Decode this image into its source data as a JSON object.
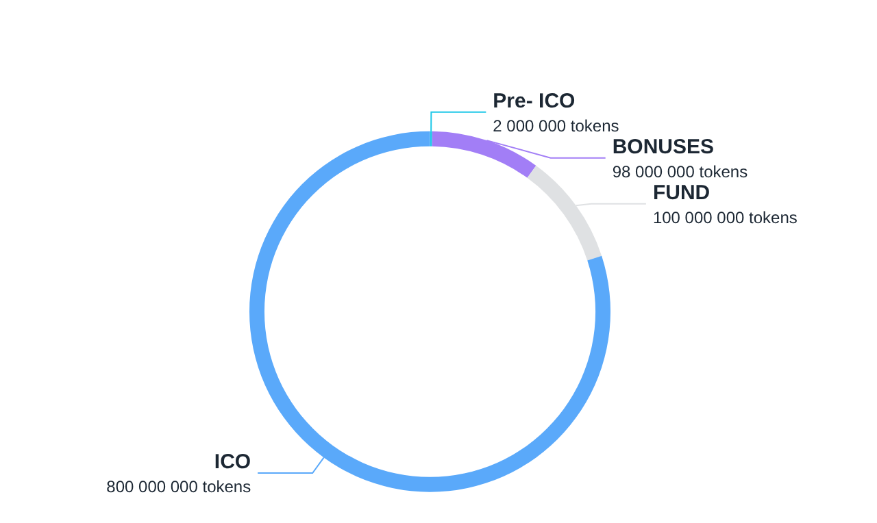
{
  "chart_data": {
    "type": "donut",
    "categories": [
      "Pre- ICO",
      "BONUSES",
      "FUND",
      "ICO"
    ],
    "values": [
      2000000,
      98000000,
      100000000,
      800000000
    ],
    "colors": [
      "#1ec8e8",
      "#a27ef6",
      "#dfe1e3",
      "#5aa9fa"
    ],
    "value_labels": [
      "2 000 000 tokens",
      "98 000 000 tokens",
      "100 000 000 tokens",
      "800 000 000 tokens"
    ],
    "legend": false
  }
}
